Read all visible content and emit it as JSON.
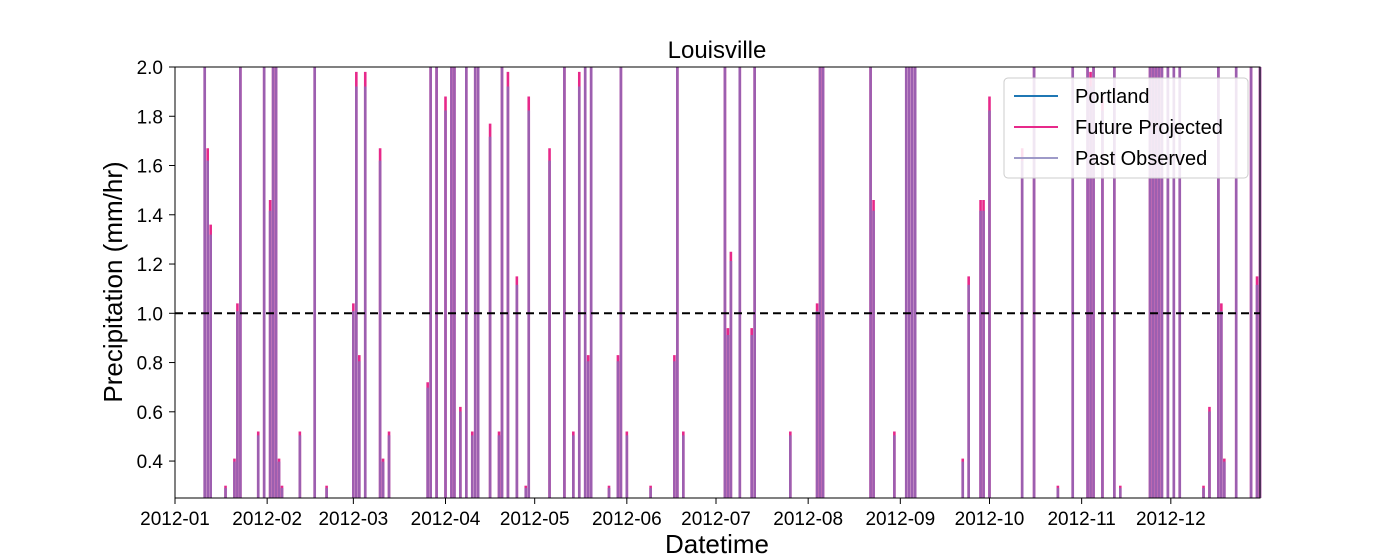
{
  "chart_data": {
    "type": "line",
    "title": "Louisville",
    "xlabel": "Datetime",
    "ylabel": "Precipitation (mm/hr)",
    "x_ticks": [
      "2012-01",
      "2012-02",
      "2012-03",
      "2012-04",
      "2012-05",
      "2012-06",
      "2012-07",
      "2012-08",
      "2012-09",
      "2012-10",
      "2012-11",
      "2012-12"
    ],
    "x_range": [
      "2012-01-01",
      "2012-12-31"
    ],
    "ylim": [
      0.25,
      2.0
    ],
    "y_ticks": [
      "0.4",
      "0.6",
      "0.8",
      "1.0",
      "1.2",
      "1.4",
      "1.6",
      "1.8",
      "2.0"
    ],
    "threshold": {
      "value": 1.0,
      "style": "dashed",
      "color": "#000000"
    },
    "legend_position": "top-right",
    "series": [
      {
        "name": "Portland",
        "color": "#1f77b4",
        "events": []
      },
      {
        "name": "Future Projected",
        "color": "#e7298a",
        "events": [
          {
            "date": "2012-01-11",
            "value": 2.0
          },
          {
            "date": "2012-01-12",
            "value": 1.67
          },
          {
            "date": "2012-01-13",
            "value": 1.36
          },
          {
            "date": "2012-01-18",
            "value": 0.3
          },
          {
            "date": "2012-01-21",
            "value": 0.41
          },
          {
            "date": "2012-01-22",
            "value": 1.04
          },
          {
            "date": "2012-01-23",
            "value": 2.0
          },
          {
            "date": "2012-01-29",
            "value": 0.52
          },
          {
            "date": "2012-01-31",
            "value": 2.0
          },
          {
            "date": "2012-02-02",
            "value": 1.46
          },
          {
            "date": "2012-02-03",
            "value": 2.0
          },
          {
            "date": "2012-02-04",
            "value": 2.0
          },
          {
            "date": "2012-02-05",
            "value": 0.41
          },
          {
            "date": "2012-02-06",
            "value": 0.3
          },
          {
            "date": "2012-02-12",
            "value": 0.52
          },
          {
            "date": "2012-02-17",
            "value": 2.0
          },
          {
            "date": "2012-02-21",
            "value": 0.3
          },
          {
            "date": "2012-03-01",
            "value": 1.04
          },
          {
            "date": "2012-03-02",
            "value": 1.98
          },
          {
            "date": "2012-03-03",
            "value": 0.83
          },
          {
            "date": "2012-03-05",
            "value": 1.98
          },
          {
            "date": "2012-03-10",
            "value": 1.67
          },
          {
            "date": "2012-03-11",
            "value": 0.41
          },
          {
            "date": "2012-03-13",
            "value": 0.52
          },
          {
            "date": "2012-03-26",
            "value": 0.72
          },
          {
            "date": "2012-03-27",
            "value": 2.0
          },
          {
            "date": "2012-03-29",
            "value": 2.0
          },
          {
            "date": "2012-04-01",
            "value": 1.88
          },
          {
            "date": "2012-04-03",
            "value": 2.0
          },
          {
            "date": "2012-04-04",
            "value": 2.0
          },
          {
            "date": "2012-04-06",
            "value": 0.62
          },
          {
            "date": "2012-04-08",
            "value": 2.0
          },
          {
            "date": "2012-04-10",
            "value": 0.52
          },
          {
            "date": "2012-04-11",
            "value": 2.0
          },
          {
            "date": "2012-04-12",
            "value": 2.0
          },
          {
            "date": "2012-04-16",
            "value": 1.77
          },
          {
            "date": "2012-04-19",
            "value": 0.52
          },
          {
            "date": "2012-04-20",
            "value": 2.0
          },
          {
            "date": "2012-04-22",
            "value": 1.98
          },
          {
            "date": "2012-04-25",
            "value": 1.15
          },
          {
            "date": "2012-04-28",
            "value": 0.3
          },
          {
            "date": "2012-04-29",
            "value": 1.88
          },
          {
            "date": "2012-05-06",
            "value": 1.67
          },
          {
            "date": "2012-05-11",
            "value": 2.0
          },
          {
            "date": "2012-05-14",
            "value": 0.52
          },
          {
            "date": "2012-05-16",
            "value": 1.98
          },
          {
            "date": "2012-05-18",
            "value": 2.0
          },
          {
            "date": "2012-05-19",
            "value": 0.83
          },
          {
            "date": "2012-05-20",
            "value": 2.0
          },
          {
            "date": "2012-05-26",
            "value": 0.3
          },
          {
            "date": "2012-05-29",
            "value": 0.83
          },
          {
            "date": "2012-05-30",
            "value": 2.0
          },
          {
            "date": "2012-06-01",
            "value": 0.52
          },
          {
            "date": "2012-06-09",
            "value": 0.3
          },
          {
            "date": "2012-06-17",
            "value": 0.83
          },
          {
            "date": "2012-06-18",
            "value": 2.0
          },
          {
            "date": "2012-06-20",
            "value": 0.52
          },
          {
            "date": "2012-07-04",
            "value": 2.0
          },
          {
            "date": "2012-07-05",
            "value": 0.94
          },
          {
            "date": "2012-07-06",
            "value": 1.25
          },
          {
            "date": "2012-07-09",
            "value": 2.0
          },
          {
            "date": "2012-07-13",
            "value": 0.94
          },
          {
            "date": "2012-07-14",
            "value": 2.0
          },
          {
            "date": "2012-07-26",
            "value": 0.52
          },
          {
            "date": "2012-08-04",
            "value": 1.04
          },
          {
            "date": "2012-08-05",
            "value": 2.0
          },
          {
            "date": "2012-08-06",
            "value": 2.0
          },
          {
            "date": "2012-08-22",
            "value": 2.0
          },
          {
            "date": "2012-08-23",
            "value": 1.46
          },
          {
            "date": "2012-08-30",
            "value": 0.52
          },
          {
            "date": "2012-09-03",
            "value": 2.0
          },
          {
            "date": "2012-09-04",
            "value": 2.0
          },
          {
            "date": "2012-09-05",
            "value": 2.0
          },
          {
            "date": "2012-09-06",
            "value": 2.0
          },
          {
            "date": "2012-09-22",
            "value": 0.41
          },
          {
            "date": "2012-09-24",
            "value": 1.15
          },
          {
            "date": "2012-09-28",
            "value": 1.46
          },
          {
            "date": "2012-09-29",
            "value": 1.46
          },
          {
            "date": "2012-10-01",
            "value": 1.88
          },
          {
            "date": "2012-10-12",
            "value": 1.67
          },
          {
            "date": "2012-10-16",
            "value": 2.0
          },
          {
            "date": "2012-10-24",
            "value": 0.3
          },
          {
            "date": "2012-10-29",
            "value": 2.0
          },
          {
            "date": "2012-11-03",
            "value": 2.0
          },
          {
            "date": "2012-11-04",
            "value": 1.98
          },
          {
            "date": "2012-11-05",
            "value": 2.0
          },
          {
            "date": "2012-11-08",
            "value": 1.88
          },
          {
            "date": "2012-11-12",
            "value": 2.0
          },
          {
            "date": "2012-11-14",
            "value": 0.3
          },
          {
            "date": "2012-11-24",
            "value": 2.0
          },
          {
            "date": "2012-11-25",
            "value": 2.0
          },
          {
            "date": "2012-11-26",
            "value": 2.0
          },
          {
            "date": "2012-11-27",
            "value": 2.0
          },
          {
            "date": "2012-11-28",
            "value": 2.0
          },
          {
            "date": "2012-11-30",
            "value": 2.0
          },
          {
            "date": "2012-12-02",
            "value": 2.0
          },
          {
            "date": "2012-12-04",
            "value": 2.0
          },
          {
            "date": "2012-12-12",
            "value": 0.3
          },
          {
            "date": "2012-12-14",
            "value": 0.62
          },
          {
            "date": "2012-12-17",
            "value": 2.0
          },
          {
            "date": "2012-12-18",
            "value": 1.04
          },
          {
            "date": "2012-12-19",
            "value": 0.41
          },
          {
            "date": "2012-12-23",
            "value": 2.0
          },
          {
            "date": "2012-12-28",
            "value": 2.0
          },
          {
            "date": "2012-12-30",
            "value": 1.15
          },
          {
            "date": "2012-12-31",
            "value": 2.0
          }
        ]
      },
      {
        "name": "Past Observed",
        "color": "#9e9ac8",
        "events": []
      }
    ]
  }
}
